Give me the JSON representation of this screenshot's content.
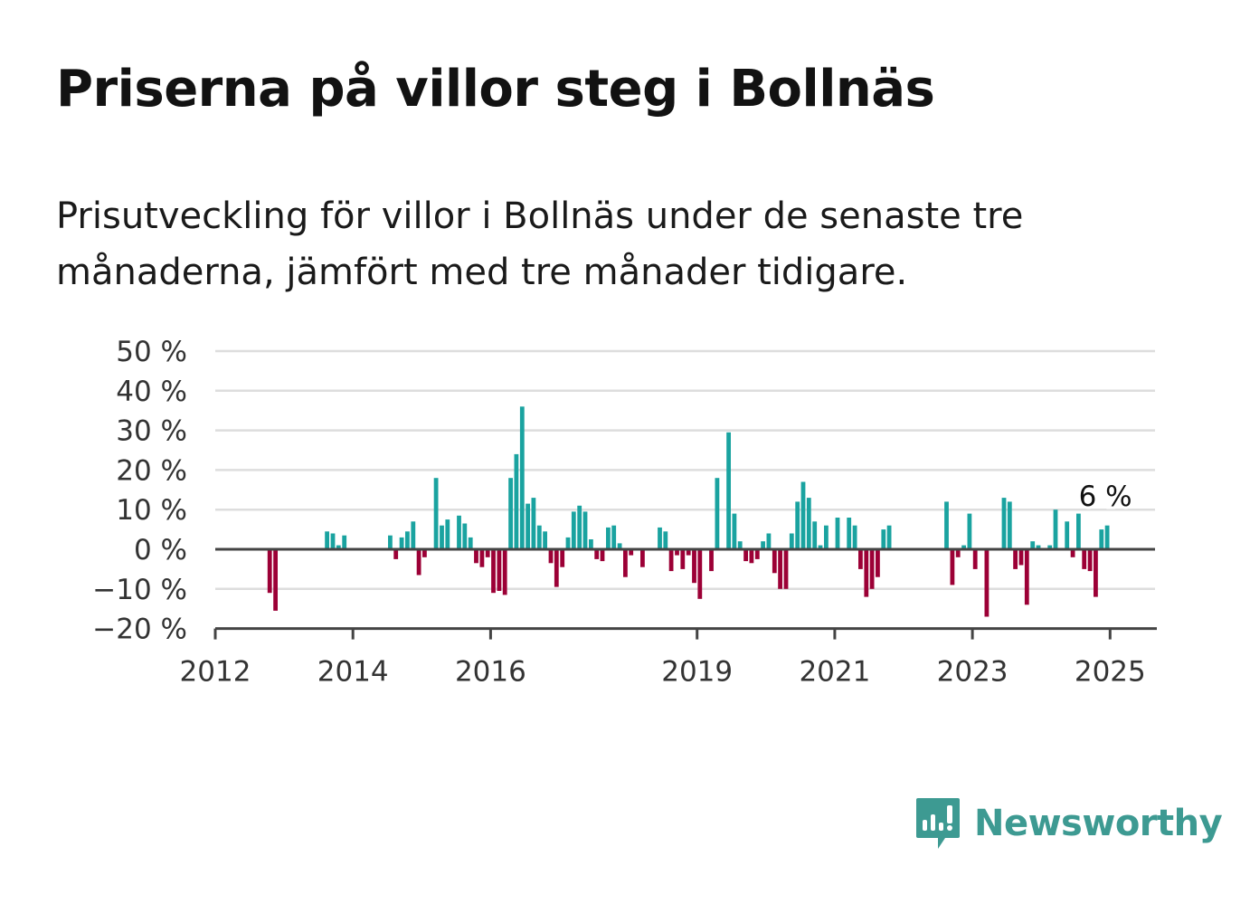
{
  "title": "Priserna på villor steg i Bollnäs",
  "subtitle": "Prisutveckling för villor i Bollnäs under de senaste tre månaderna, jämfört med tre månader tidigare.",
  "brand": {
    "name": "Newsworthy",
    "icon": "newsworthy-chart-bubble-icon",
    "color": "#3d9a92"
  },
  "colors": {
    "positive": "#1aa3a0",
    "negative": "#9c0036",
    "grid": "#dddddd",
    "axis": "#444444"
  },
  "chart_data": {
    "type": "bar",
    "ylim": [
      -20,
      50
    ],
    "y_ticks": [
      {
        "value": 50,
        "label": "50 %"
      },
      {
        "value": 40,
        "label": "40 %"
      },
      {
        "value": 30,
        "label": "30 %"
      },
      {
        "value": 20,
        "label": "20 %"
      },
      {
        "value": 10,
        "label": "10 %"
      },
      {
        "value": 0,
        "label": "0 %"
      },
      {
        "value": -10,
        "label": "−10 %"
      },
      {
        "value": -20,
        "label": "−20 %"
      }
    ],
    "x_ticks": [
      "2012",
      "2014",
      "2016",
      "2019",
      "2021",
      "2023",
      "2025"
    ],
    "x_start": "2012-01",
    "last_value_label": "6 %",
    "series": [
      {
        "data": [
          [
            "2012-10",
            -11
          ],
          [
            "2012-11",
            -15.5
          ],
          [
            "2013-08",
            4.5
          ],
          [
            "2013-09",
            4
          ],
          [
            "2013-10",
            1
          ],
          [
            "2013-11",
            3.5
          ],
          [
            "2014-07",
            3.5
          ],
          [
            "2014-08",
            -2.5
          ],
          [
            "2014-09",
            3
          ],
          [
            "2014-10",
            4.5
          ],
          [
            "2014-11",
            7
          ],
          [
            "2014-12",
            -6.5
          ],
          [
            "2015-01",
            -2
          ],
          [
            "2015-03",
            18
          ],
          [
            "2015-04",
            6
          ],
          [
            "2015-05",
            7.5
          ],
          [
            "2015-07",
            8.5
          ],
          [
            "2015-08",
            6.5
          ],
          [
            "2015-09",
            3
          ],
          [
            "2015-10",
            -3.5
          ],
          [
            "2015-11",
            -4.5
          ],
          [
            "2015-12",
            -2
          ],
          [
            "2016-01",
            -11
          ],
          [
            "2016-02",
            -10.5
          ],
          [
            "2016-03",
            -11.5
          ],
          [
            "2016-04",
            18
          ],
          [
            "2016-05",
            24
          ],
          [
            "2016-06",
            36
          ],
          [
            "2016-07",
            11.5
          ],
          [
            "2016-08",
            13
          ],
          [
            "2016-09",
            6
          ],
          [
            "2016-10",
            4.5
          ],
          [
            "2016-11",
            -3.5
          ],
          [
            "2016-12",
            -9.5
          ],
          [
            "2017-01",
            -4.5
          ],
          [
            "2017-02",
            3
          ],
          [
            "2017-03",
            9.5
          ],
          [
            "2017-04",
            11
          ],
          [
            "2017-05",
            9.5
          ],
          [
            "2017-06",
            2.5
          ],
          [
            "2017-07",
            -2.5
          ],
          [
            "2017-08",
            -3
          ],
          [
            "2017-09",
            5.5
          ],
          [
            "2017-10",
            6
          ],
          [
            "2017-11",
            1.5
          ],
          [
            "2017-12",
            -7
          ],
          [
            "2018-01",
            -1.5
          ],
          [
            "2018-03",
            -4.5
          ],
          [
            "2018-06",
            5.5
          ],
          [
            "2018-07",
            4.5
          ],
          [
            "2018-08",
            -5.5
          ],
          [
            "2018-09",
            -1.5
          ],
          [
            "2018-10",
            -5
          ],
          [
            "2018-11",
            -1.5
          ],
          [
            "2018-12",
            -8.5
          ],
          [
            "2019-01",
            -12.5
          ],
          [
            "2019-03",
            -5.5
          ],
          [
            "2019-04",
            18
          ],
          [
            "2019-06",
            29.5
          ],
          [
            "2019-07",
            9
          ],
          [
            "2019-08",
            2
          ],
          [
            "2019-09",
            -3
          ],
          [
            "2019-10",
            -3.5
          ],
          [
            "2019-11",
            -2.5
          ],
          [
            "2019-12",
            2
          ],
          [
            "2020-01",
            4
          ],
          [
            "2020-02",
            -6
          ],
          [
            "2020-03",
            -10
          ],
          [
            "2020-04",
            -10
          ],
          [
            "2020-05",
            4
          ],
          [
            "2020-06",
            12
          ],
          [
            "2020-07",
            17
          ],
          [
            "2020-08",
            13
          ],
          [
            "2020-09",
            7
          ],
          [
            "2020-10",
            1
          ],
          [
            "2020-11",
            6
          ],
          [
            "2021-01",
            8
          ],
          [
            "2021-03",
            8
          ],
          [
            "2021-04",
            6
          ],
          [
            "2021-05",
            -5
          ],
          [
            "2021-06",
            -12
          ],
          [
            "2021-07",
            -10
          ],
          [
            "2021-08",
            -7
          ],
          [
            "2021-09",
            5
          ],
          [
            "2021-10",
            6
          ],
          [
            "2022-08",
            12
          ],
          [
            "2022-09",
            -9
          ],
          [
            "2022-10",
            -2
          ],
          [
            "2022-11",
            1
          ],
          [
            "2022-12",
            9
          ],
          [
            "2023-01",
            -5
          ],
          [
            "2023-03",
            -17
          ],
          [
            "2023-06",
            13
          ],
          [
            "2023-07",
            12
          ],
          [
            "2023-08",
            -5
          ],
          [
            "2023-09",
            -4
          ],
          [
            "2023-10",
            -14
          ],
          [
            "2023-11",
            2
          ],
          [
            "2023-12",
            1
          ],
          [
            "2024-02",
            1
          ],
          [
            "2024-03",
            10
          ],
          [
            "2024-05",
            7
          ],
          [
            "2024-06",
            -2
          ],
          [
            "2024-07",
            9
          ],
          [
            "2024-08",
            -5
          ],
          [
            "2024-09",
            -5.5
          ],
          [
            "2024-10",
            -12
          ],
          [
            "2024-11",
            5
          ],
          [
            "2024-12",
            6
          ]
        ]
      }
    ]
  }
}
